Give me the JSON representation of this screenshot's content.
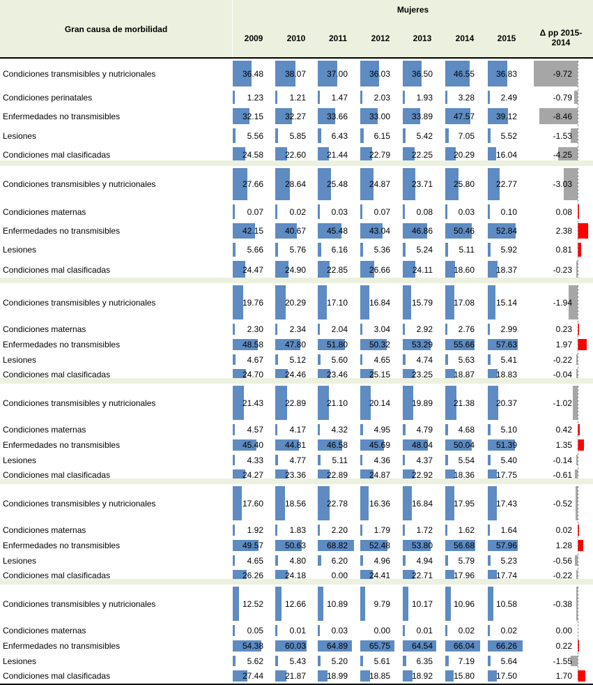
{
  "header": {
    "group_title": "Mujeres",
    "cause_title": "Gran causa de morbilidad",
    "years": [
      "2009",
      "2010",
      "2011",
      "2012",
      "2013",
      "2014",
      "2015"
    ],
    "delta_title_1": "Δ pp 2015-",
    "delta_title_2": "2014"
  },
  "colors": {
    "bar": "#4f81bd",
    "neg": "#a6a6a6",
    "pos": "#ff0000",
    "band": "#ebf1de"
  },
  "blocks": [
    {
      "rows": [
        {
          "label": "Condiciones transmisibles y nutricionales",
          "values": [
            "36.48",
            "38.07",
            "37.00",
            "36.03",
            "36.50",
            "46.55",
            "36.83"
          ],
          "delta": "-9.72"
        },
        {
          "label": "Condiciones perinatales",
          "values": [
            "1.23",
            "1.21",
            "1.47",
            "2.03",
            "1.93",
            "3.28",
            "2.49"
          ],
          "delta": "-0.79"
        },
        {
          "label": "Enfermedades no transmisibles",
          "values": [
            "32.15",
            "32.27",
            "33.66",
            "33.00",
            "33.89",
            "47.57",
            "39.12"
          ],
          "delta": "-8.46"
        },
        {
          "label": "Lesiones",
          "values": [
            "5.56",
            "5.85",
            "6.43",
            "6.15",
            "5.42",
            "7.05",
            "5.52"
          ],
          "delta": "-1.53"
        },
        {
          "label": "Condiciones mal clasificadas",
          "values": [
            "24.58",
            "22.60",
            "21.44",
            "22.79",
            "22.25",
            "20.29",
            "16.04"
          ],
          "delta": "-4.25"
        }
      ]
    },
    {
      "rows": [
        {
          "label": "Condiciones transmisibles y nutricionales",
          "values": [
            "27.66",
            "28.64",
            "25.48",
            "24.87",
            "23.71",
            "25.80",
            "22.77"
          ],
          "delta": "-3.03"
        },
        {
          "label": "Condiciones maternas",
          "values": [
            "0.07",
            "0.02",
            "0.03",
            "0.07",
            "0.08",
            "0.03",
            "0.10"
          ],
          "delta": "0.08"
        },
        {
          "label": "Enfermedades no transmisibles",
          "values": [
            "42.15",
            "40.67",
            "45.48",
            "43.04",
            "46.86",
            "50.46",
            "52.84"
          ],
          "delta": "2.38"
        },
        {
          "label": "Lesiones",
          "values": [
            "5.66",
            "5.76",
            "6.16",
            "5.36",
            "5.24",
            "5.11",
            "5.92"
          ],
          "delta": "0.81"
        },
        {
          "label": "Condiciones mal clasificadas",
          "values": [
            "24.47",
            "24.90",
            "22.85",
            "26.66",
            "24.11",
            "18.60",
            "18.37"
          ],
          "delta": "-0.23"
        }
      ]
    },
    {
      "rows": [
        {
          "label": "Condiciones transmisibles y nutricionales",
          "values": [
            "19.76",
            "20.29",
            "17.10",
            "16.84",
            "15.79",
            "17.08",
            "15.14"
          ],
          "delta": "-1.94"
        },
        {
          "label": "Condiciones maternas",
          "values": [
            "2.30",
            "2.34",
            "2.04",
            "3.04",
            "2.92",
            "2.76",
            "2.99"
          ],
          "delta": "0.23"
        },
        {
          "label": "Enfermedades no transmisibles",
          "values": [
            "48.58",
            "47.80",
            "51.80",
            "50.32",
            "53.29",
            "55.66",
            "57.63"
          ],
          "delta": "1.97"
        },
        {
          "label": "Lesiones",
          "values": [
            "4.67",
            "5.12",
            "5.60",
            "4.65",
            "4.74",
            "5.63",
            "5.41"
          ],
          "delta": "-0.22"
        },
        {
          "label": "Condiciones mal clasificadas",
          "values": [
            "24.70",
            "24.46",
            "23.46",
            "25.15",
            "23.25",
            "18.87",
            "18.83"
          ],
          "delta": "-0.04"
        }
      ]
    },
    {
      "rows": [
        {
          "label": "Condiciones transmisibles y nutricionales",
          "values": [
            "21.43",
            "22.89",
            "21.10",
            "20.14",
            "19.89",
            "21.38",
            "20.37"
          ],
          "delta": "-1.02"
        },
        {
          "label": "Condiciones maternas",
          "values": [
            "4.57",
            "4.17",
            "4.32",
            "4.95",
            "4.79",
            "4.68",
            "5.10"
          ],
          "delta": "0.42"
        },
        {
          "label": "Enfermedades no transmisibles",
          "values": [
            "45.40",
            "44.81",
            "46.58",
            "45.69",
            "48.04",
            "50.04",
            "51.39"
          ],
          "delta": "1.35"
        },
        {
          "label": "Lesiones",
          "values": [
            "4.33",
            "4.77",
            "5.11",
            "4.36",
            "4.37",
            "5.54",
            "5.40"
          ],
          "delta": "-0.14"
        },
        {
          "label": "Condiciones mal clasificadas",
          "values": [
            "24.27",
            "23.36",
            "22.89",
            "24.87",
            "22.92",
            "18.36",
            "17.75"
          ],
          "delta": "-0.61"
        }
      ]
    },
    {
      "rows": [
        {
          "label": "Condiciones transmisibles y nutricionales",
          "values": [
            "17.60",
            "18.56",
            "22.78",
            "16.36",
            "16.84",
            "17.95",
            "17.43"
          ],
          "delta": "-0.52"
        },
        {
          "label": "Condiciones maternas",
          "values": [
            "1.92",
            "1.83",
            "2.20",
            "1.79",
            "1.72",
            "1.62",
            "1.64"
          ],
          "delta": "0.02"
        },
        {
          "label": "Enfermedades no transmisibles",
          "values": [
            "49.57",
            "50.63",
            "68.82",
            "52.48",
            "53.80",
            "56.68",
            "57.96"
          ],
          "delta": "1.28"
        },
        {
          "label": "Lesiones",
          "values": [
            "4.65",
            "4.80",
            "6.20",
            "4.96",
            "4.94",
            "5.79",
            "5.23"
          ],
          "delta": "-0.56"
        },
        {
          "label": "Condiciones mal clasificadas",
          "values": [
            "26.26",
            "24.18",
            "0.00",
            "24.41",
            "22.71",
            "17.96",
            "17.74"
          ],
          "delta": "-0.22"
        }
      ]
    },
    {
      "rows": [
        {
          "label": "Condiciones transmisibles y nutricionales",
          "values": [
            "12.52",
            "12.66",
            "10.89",
            "9.79",
            "10.17",
            "10.96",
            "10.58"
          ],
          "delta": "-0.38"
        },
        {
          "label": "Condiciones maternas",
          "values": [
            "0.05",
            "0.01",
            "0.03",
            "0.00",
            "0.01",
            "0.02",
            "0.02"
          ],
          "delta": "0.00"
        },
        {
          "label": "Enfermedades no transmisibles",
          "values": [
            "54.38",
            "60.03",
            "64.89",
            "65.75",
            "64.54",
            "66.04",
            "66.26"
          ],
          "delta": "0.22"
        },
        {
          "label": "Lesiones",
          "values": [
            "5.62",
            "5.43",
            "5.20",
            "5.61",
            "6.35",
            "7.19",
            "5.64"
          ],
          "delta": "-1.55"
        },
        {
          "label": "Condiciones mal clasificadas",
          "values": [
            "27.44",
            "21.87",
            "18.99",
            "18.85",
            "18.92",
            "15.80",
            "17.50"
          ],
          "delta": "1.70"
        }
      ]
    }
  ]
}
